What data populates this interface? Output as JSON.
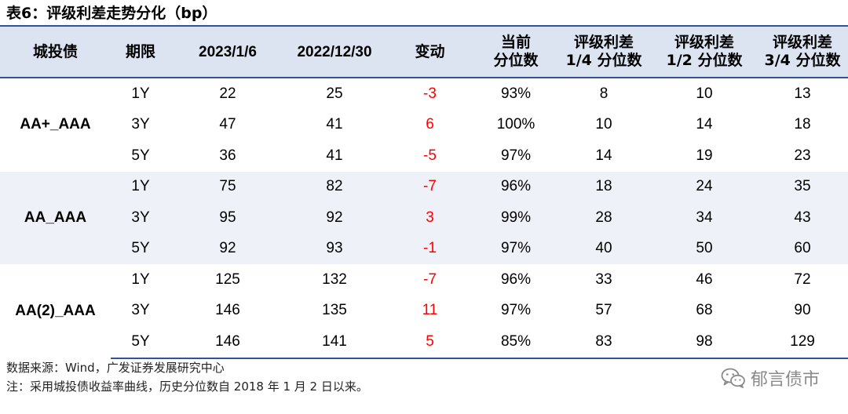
{
  "title": "表6：评级利差走势分化（bp）",
  "headers": {
    "col0": "城投债",
    "col1": "期限",
    "col2": "2023/1/6",
    "col3": "2022/12/30",
    "col4": "变动",
    "col5": [
      "当前",
      "分位数"
    ],
    "col6": [
      "评级利差",
      "1/4 分位数"
    ],
    "col7": [
      "评级利差",
      "1/2 分位数"
    ],
    "col8": [
      "评级利差",
      "3/4 分位数"
    ]
  },
  "groups": [
    {
      "name": "AA+_AAA",
      "rows": [
        {
          "term": "1Y",
          "v2023": "22",
          "v2022": "25",
          "chg": "-3",
          "pct": "93%",
          "q1": "8",
          "q2": "10",
          "q3": "13"
        },
        {
          "term": "3Y",
          "v2023": "47",
          "v2022": "41",
          "chg": "6",
          "pct": "100%",
          "q1": "10",
          "q2": "14",
          "q3": "18"
        },
        {
          "term": "5Y",
          "v2023": "36",
          "v2022": "41",
          "chg": "-5",
          "pct": "97%",
          "q1": "14",
          "q2": "19",
          "q3": "23"
        }
      ]
    },
    {
      "name": "AA_AAA",
      "rows": [
        {
          "term": "1Y",
          "v2023": "75",
          "v2022": "82",
          "chg": "-7",
          "pct": "96%",
          "q1": "18",
          "q2": "24",
          "q3": "35"
        },
        {
          "term": "3Y",
          "v2023": "95",
          "v2022": "92",
          "chg": "3",
          "pct": "99%",
          "q1": "28",
          "q2": "34",
          "q3": "43"
        },
        {
          "term": "5Y",
          "v2023": "92",
          "v2022": "93",
          "chg": "-1",
          "pct": "97%",
          "q1": "40",
          "q2": "50",
          "q3": "60"
        }
      ]
    },
    {
      "name": "AA(2)_AAA",
      "rows": [
        {
          "term": "1Y",
          "v2023": "125",
          "v2022": "132",
          "chg": "-7",
          "pct": "96%",
          "q1": "33",
          "q2": "46",
          "q3": "72"
        },
        {
          "term": "3Y",
          "v2023": "146",
          "v2022": "135",
          "chg": "11",
          "pct": "97%",
          "q1": "57",
          "q2": "68",
          "q3": "90"
        },
        {
          "term": "5Y",
          "v2023": "146",
          "v2022": "141",
          "chg": "5",
          "pct": "85%",
          "q1": "83",
          "q2": "98",
          "q3": "129"
        }
      ]
    }
  ],
  "footer": {
    "source": "数据来源：Wind，广发证券发展研究中心",
    "note": "注：采用城投债收益率曲线，历史分位数自 2018 年 1 月 2 日以来。"
  },
  "watermark": {
    "text": "郁言债市",
    "icon": "wechat-icon"
  },
  "colors": {
    "header_bg": "#dce4f2",
    "band_bg": "#eef1f8",
    "rule": "#2f5597",
    "change_text": "#ff0000"
  }
}
